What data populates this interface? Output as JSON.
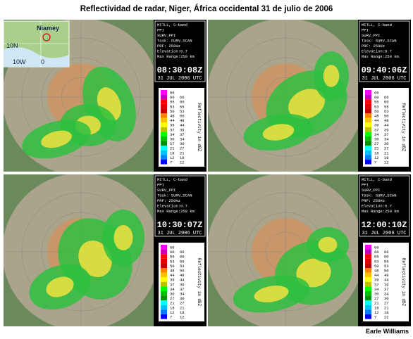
{
  "header": {
    "title": "Reflectividad de radar, Niger, África occidental 31 de julio de 2006"
  },
  "map": {
    "city": "Niamey",
    "lat": "10N",
    "lon_west": "10W",
    "lon_zero": "0"
  },
  "panels": [
    {
      "info": [
        "MITLL, C-band",
        "PPI",
        "SURV_PPI",
        "Task: SURV_SCAN",
        "PRF: 250Hz",
        "Elevation:0.7",
        "Max Range:250 km"
      ],
      "time": "08:30:08Z",
      "date": "31 JUL 2006 UTC"
    },
    {
      "info": [
        "MITLL, C-band",
        "PPI",
        "SURV_PPI",
        "Task: SURV_SCAN",
        "PRF: 250Hz",
        "Elevation:0.7",
        "Max Range:250 km"
      ],
      "time": "09:40:06Z",
      "date": "31 JUL 2006 UTC"
    },
    {
      "info": [
        "MITLL, C-band",
        "PPI",
        "SURV_PPI",
        "Task: SURV_SCAN",
        "PRF: 250Hz",
        "Elevation:0.7",
        "Max Range:250 km"
      ],
      "time": "10:30:07Z",
      "date": "31 JUL 2006 UTC"
    },
    {
      "info": [
        "MITLL, C-band",
        "PPI",
        "SURV_PPI",
        "Task: SURV_SCAN",
        "PRF: 250Hz",
        "Elevation:0.7",
        "Max Range:250 km"
      ],
      "time": "12:00:10Z",
      "date": "31 JUL 2006 UTC"
    }
  ],
  "scale": {
    "labels": [
      "66",
      "60",
      "55",
      "53",
      "50",
      "48",
      "44",
      "39",
      "37",
      "34",
      "30",
      "27",
      "21",
      "18",
      "12",
      "7"
    ],
    "title": "Reflectivity in dBZ"
  },
  "credit": "Earle Williams"
}
